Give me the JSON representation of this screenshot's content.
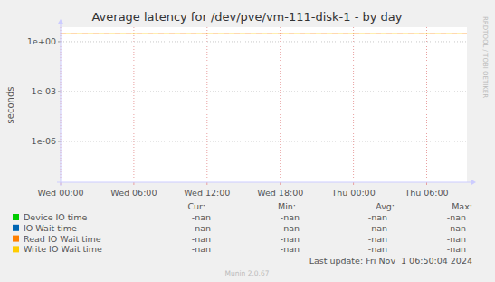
{
  "chart_data": {
    "type": "line",
    "title": "Average latency for /dev/pve/vm-111-disk-1 - by day",
    "y_label": "seconds",
    "side_text": "RRDTOOL / TOBI OETIKER",
    "footer": "Munin 2.0.67",
    "last_update": "Last update: Fri Nov  1 06:50:04 2024",
    "log": "y",
    "grid": true,
    "xlim": [
      0,
      33.3
    ],
    "xticks": [
      {
        "value": 0,
        "label": "Wed 00:00"
      },
      {
        "value": 6,
        "label": "Wed 06:00"
      },
      {
        "value": 12,
        "label": "Wed 12:00"
      },
      {
        "value": 18,
        "label": "Wed 18:00"
      },
      {
        "value": 24,
        "label": "Thu 00:00"
      },
      {
        "value": 30,
        "label": "Thu 06:00"
      }
    ],
    "ylim": [
      3.5e-09,
      7.4
    ],
    "yticks": [
      {
        "value": 1e-06,
        "label": "1e-06"
      },
      {
        "value": 0.001,
        "label": "1e-03"
      },
      {
        "value": 1,
        "label": "1e+00"
      }
    ],
    "legend_columns": [
      "Cur:",
      "Min:",
      "Avg:",
      "Max:"
    ],
    "x": [],
    "series": [
      {
        "name": "Device IO time",
        "color": "#00cc00",
        "values": [],
        "stats": [
          "-nan",
          "-nan",
          "-nan",
          "-nan"
        ]
      },
      {
        "name": "IO Wait time",
        "color": "#0066b3",
        "values": [],
        "stats": [
          "-nan",
          "-nan",
          "-nan",
          "-nan"
        ]
      },
      {
        "name": "Read IO Wait time",
        "color": "#ff8000",
        "values": [],
        "stats": [
          "-nan",
          "-nan",
          "-nan",
          "-nan"
        ],
        "warning": 3
      },
      {
        "name": "Write IO Wait time",
        "color": "#ffcc00",
        "values": [],
        "stats": [
          "-nan",
          "-nan",
          "-nan",
          "-nan"
        ],
        "warning": 3
      }
    ]
  }
}
